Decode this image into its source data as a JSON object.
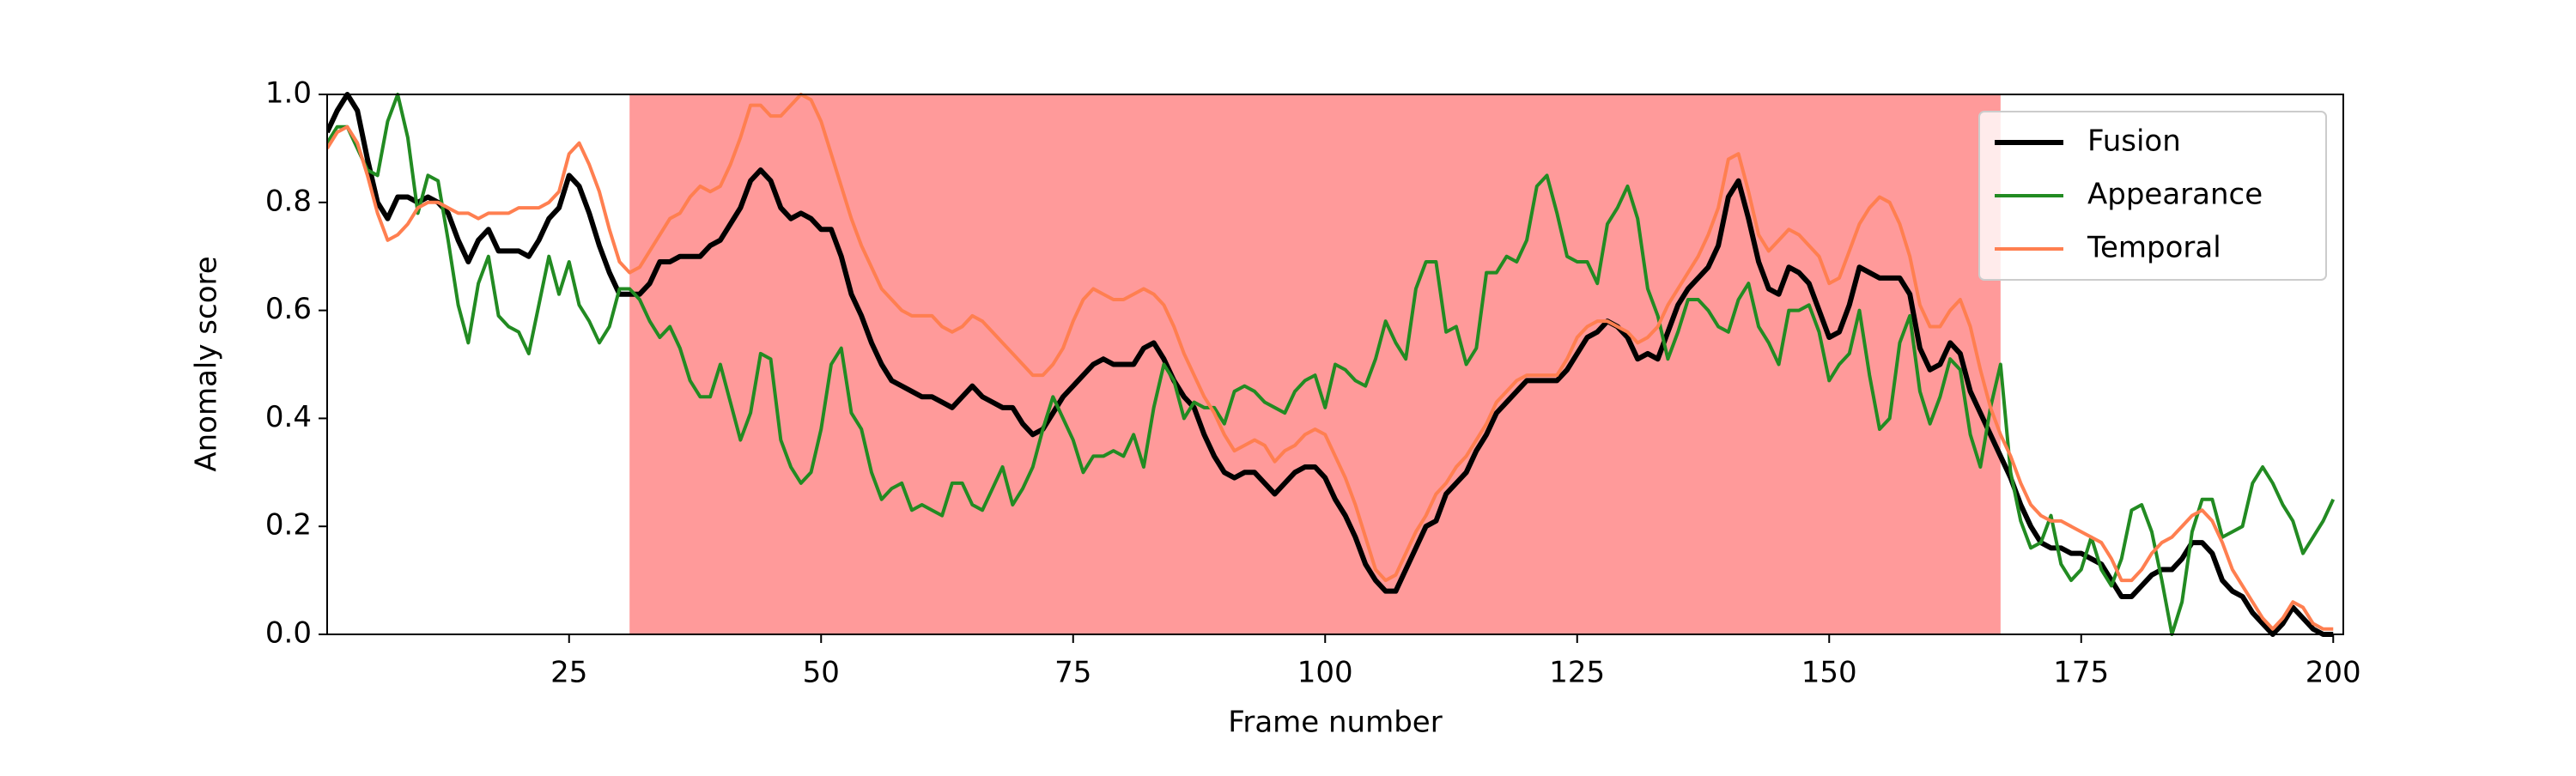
{
  "chart_data": {
    "type": "line",
    "x_label": "Frame number",
    "y_label": "Anomaly score",
    "xlim": [
      1,
      201
    ],
    "ylim": [
      0,
      1
    ],
    "xticks": [
      25,
      50,
      75,
      100,
      125,
      150,
      175,
      200
    ],
    "yticks": [
      {
        "value": 0,
        "label": "0.0"
      },
      0.2,
      0.4,
      0.6,
      0.8,
      {
        "value": 1,
        "label": "1.0"
      }
    ],
    "legend": "upper right",
    "shaded_span": {
      "from": 31,
      "to": 167,
      "color": "#ff9a9a"
    },
    "x": [
      1,
      2,
      3,
      4,
      5,
      6,
      7,
      8,
      9,
      10,
      11,
      12,
      13,
      14,
      15,
      16,
      17,
      18,
      19,
      20,
      21,
      22,
      23,
      24,
      25,
      26,
      27,
      28,
      29,
      30,
      31,
      32,
      33,
      34,
      35,
      36,
      37,
      38,
      39,
      40,
      41,
      42,
      43,
      44,
      45,
      46,
      47,
      48,
      49,
      50,
      51,
      52,
      53,
      54,
      55,
      56,
      57,
      58,
      59,
      60,
      61,
      62,
      63,
      64,
      65,
      66,
      67,
      68,
      69,
      70,
      71,
      72,
      73,
      74,
      75,
      76,
      77,
      78,
      79,
      80,
      81,
      82,
      83,
      84,
      85,
      86,
      87,
      88,
      89,
      90,
      91,
      92,
      93,
      94,
      95,
      96,
      97,
      98,
      99,
      100,
      101,
      102,
      103,
      104,
      105,
      106,
      107,
      108,
      109,
      110,
      111,
      112,
      113,
      114,
      115,
      116,
      117,
      118,
      119,
      120,
      121,
      122,
      123,
      124,
      125,
      126,
      127,
      128,
      129,
      130,
      131,
      132,
      133,
      134,
      135,
      136,
      137,
      138,
      139,
      140,
      141,
      142,
      143,
      144,
      145,
      146,
      147,
      148,
      149,
      150,
      151,
      152,
      153,
      154,
      155,
      156,
      157,
      158,
      159,
      160,
      161,
      162,
      163,
      164,
      165,
      166,
      167,
      168,
      169,
      170,
      171,
      172,
      173,
      174,
      175,
      176,
      177,
      178,
      179,
      180,
      181,
      182,
      183,
      184,
      185,
      186,
      187,
      188,
      189,
      190,
      191,
      192,
      193,
      194,
      195,
      196,
      197,
      198,
      199,
      200
    ],
    "series": [
      {
        "name": "Fusion",
        "color": "#000000",
        "width": 6,
        "values": [
          0.93,
          0.97,
          1.0,
          0.97,
          0.88,
          0.8,
          0.77,
          0.81,
          0.81,
          0.8,
          0.81,
          0.8,
          0.78,
          0.73,
          0.69,
          0.73,
          0.75,
          0.71,
          0.71,
          0.71,
          0.7,
          0.73,
          0.77,
          0.79,
          0.85,
          0.83,
          0.78,
          0.72,
          0.67,
          0.63,
          0.63,
          0.63,
          0.65,
          0.69,
          0.69,
          0.7,
          0.7,
          0.7,
          0.72,
          0.73,
          0.76,
          0.79,
          0.84,
          0.86,
          0.84,
          0.79,
          0.77,
          0.78,
          0.77,
          0.75,
          0.75,
          0.7,
          0.63,
          0.59,
          0.54,
          0.5,
          0.47,
          0.46,
          0.45,
          0.44,
          0.44,
          0.43,
          0.42,
          0.44,
          0.46,
          0.44,
          0.43,
          0.42,
          0.42,
          0.39,
          0.37,
          0.38,
          0.41,
          0.44,
          0.46,
          0.48,
          0.5,
          0.51,
          0.5,
          0.5,
          0.5,
          0.53,
          0.54,
          0.51,
          0.47,
          0.44,
          0.42,
          0.37,
          0.33,
          0.3,
          0.29,
          0.3,
          0.3,
          0.28,
          0.26,
          0.28,
          0.3,
          0.31,
          0.31,
          0.29,
          0.25,
          0.22,
          0.18,
          0.13,
          0.1,
          0.08,
          0.08,
          0.12,
          0.16,
          0.2,
          0.21,
          0.26,
          0.28,
          0.3,
          0.34,
          0.37,
          0.41,
          0.43,
          0.45,
          0.47,
          0.47,
          0.47,
          0.47,
          0.49,
          0.52,
          0.55,
          0.56,
          0.58,
          0.57,
          0.55,
          0.51,
          0.52,
          0.51,
          0.56,
          0.61,
          0.64,
          0.66,
          0.68,
          0.72,
          0.81,
          0.84,
          0.77,
          0.69,
          0.64,
          0.63,
          0.68,
          0.67,
          0.65,
          0.6,
          0.55,
          0.56,
          0.61,
          0.68,
          0.67,
          0.66,
          0.66,
          0.66,
          0.63,
          0.53,
          0.49,
          0.5,
          0.54,
          0.52,
          0.45,
          0.41,
          0.37,
          0.33,
          0.29,
          0.24,
          0.2,
          0.17,
          0.16,
          0.16,
          0.15,
          0.15,
          0.14,
          0.13,
          0.1,
          0.07,
          0.07,
          0.09,
          0.11,
          0.12,
          0.12,
          0.14,
          0.17,
          0.17,
          0.15,
          0.1,
          0.08,
          0.07,
          0.04,
          0.02,
          0.0,
          0.02,
          0.05,
          0.03,
          0.01,
          0.0,
          0.0
        ]
      },
      {
        "name": "Appearance",
        "color": "#228b22",
        "width": 4,
        "values": [
          0.91,
          0.94,
          0.94,
          0.9,
          0.86,
          0.85,
          0.95,
          1.0,
          0.92,
          0.78,
          0.85,
          0.84,
          0.73,
          0.61,
          0.54,
          0.65,
          0.7,
          0.59,
          0.57,
          0.56,
          0.52,
          0.61,
          0.7,
          0.63,
          0.69,
          0.61,
          0.58,
          0.54,
          0.57,
          0.64,
          0.64,
          0.62,
          0.58,
          0.55,
          0.57,
          0.53,
          0.47,
          0.44,
          0.44,
          0.5,
          0.43,
          0.36,
          0.41,
          0.52,
          0.51,
          0.36,
          0.31,
          0.28,
          0.3,
          0.38,
          0.5,
          0.53,
          0.41,
          0.38,
          0.3,
          0.25,
          0.27,
          0.28,
          0.23,
          0.24,
          0.23,
          0.22,
          0.28,
          0.28,
          0.24,
          0.23,
          0.27,
          0.31,
          0.24,
          0.27,
          0.31,
          0.38,
          0.44,
          0.4,
          0.36,
          0.3,
          0.33,
          0.33,
          0.34,
          0.33,
          0.37,
          0.31,
          0.42,
          0.5,
          0.47,
          0.4,
          0.43,
          0.42,
          0.42,
          0.39,
          0.45,
          0.46,
          0.45,
          0.43,
          0.42,
          0.41,
          0.45,
          0.47,
          0.48,
          0.42,
          0.5,
          0.49,
          0.47,
          0.46,
          0.51,
          0.58,
          0.54,
          0.51,
          0.64,
          0.69,
          0.69,
          0.56,
          0.57,
          0.5,
          0.53,
          0.67,
          0.67,
          0.7,
          0.69,
          0.73,
          0.83,
          0.85,
          0.78,
          0.7,
          0.69,
          0.69,
          0.65,
          0.76,
          0.79,
          0.83,
          0.77,
          0.64,
          0.59,
          0.51,
          0.56,
          0.62,
          0.62,
          0.6,
          0.57,
          0.56,
          0.62,
          0.65,
          0.57,
          0.54,
          0.5,
          0.6,
          0.6,
          0.61,
          0.56,
          0.47,
          0.5,
          0.52,
          0.6,
          0.48,
          0.38,
          0.4,
          0.54,
          0.59,
          0.45,
          0.39,
          0.44,
          0.51,
          0.49,
          0.37,
          0.31,
          0.42,
          0.5,
          0.3,
          0.21,
          0.16,
          0.17,
          0.22,
          0.13,
          0.1,
          0.12,
          0.18,
          0.12,
          0.09,
          0.14,
          0.23,
          0.24,
          0.19,
          0.1,
          0.0,
          0.06,
          0.19,
          0.25,
          0.25,
          0.18,
          0.19,
          0.2,
          0.28,
          0.31,
          0.28,
          0.24,
          0.21,
          0.15,
          0.18,
          0.21,
          0.25
        ]
      },
      {
        "name": "Temporal",
        "color": "#ff7f50",
        "width": 4,
        "values": [
          0.9,
          0.93,
          0.94,
          0.91,
          0.85,
          0.78,
          0.73,
          0.74,
          0.76,
          0.79,
          0.8,
          0.8,
          0.79,
          0.78,
          0.78,
          0.77,
          0.78,
          0.78,
          0.78,
          0.79,
          0.79,
          0.79,
          0.8,
          0.82,
          0.89,
          0.91,
          0.87,
          0.82,
          0.75,
          0.69,
          0.67,
          0.68,
          0.71,
          0.74,
          0.77,
          0.78,
          0.81,
          0.83,
          0.82,
          0.83,
          0.87,
          0.92,
          0.98,
          0.98,
          0.96,
          0.96,
          0.98,
          1.0,
          0.99,
          0.95,
          0.89,
          0.83,
          0.77,
          0.72,
          0.68,
          0.64,
          0.62,
          0.6,
          0.59,
          0.59,
          0.59,
          0.57,
          0.56,
          0.57,
          0.59,
          0.58,
          0.56,
          0.54,
          0.52,
          0.5,
          0.48,
          0.48,
          0.5,
          0.53,
          0.58,
          0.62,
          0.64,
          0.63,
          0.62,
          0.62,
          0.63,
          0.64,
          0.63,
          0.61,
          0.57,
          0.52,
          0.48,
          0.44,
          0.41,
          0.37,
          0.34,
          0.35,
          0.36,
          0.35,
          0.32,
          0.34,
          0.35,
          0.37,
          0.38,
          0.37,
          0.33,
          0.29,
          0.24,
          0.18,
          0.12,
          0.1,
          0.11,
          0.15,
          0.19,
          0.22,
          0.26,
          0.28,
          0.31,
          0.33,
          0.36,
          0.39,
          0.43,
          0.45,
          0.47,
          0.48,
          0.48,
          0.48,
          0.48,
          0.51,
          0.55,
          0.57,
          0.58,
          0.58,
          0.57,
          0.56,
          0.54,
          0.55,
          0.57,
          0.61,
          0.64,
          0.67,
          0.7,
          0.74,
          0.79,
          0.88,
          0.89,
          0.82,
          0.74,
          0.71,
          0.73,
          0.75,
          0.74,
          0.72,
          0.7,
          0.65,
          0.66,
          0.71,
          0.76,
          0.79,
          0.81,
          0.8,
          0.76,
          0.7,
          0.61,
          0.57,
          0.57,
          0.6,
          0.62,
          0.57,
          0.49,
          0.42,
          0.37,
          0.33,
          0.28,
          0.24,
          0.22,
          0.21,
          0.21,
          0.2,
          0.19,
          0.18,
          0.17,
          0.14,
          0.1,
          0.1,
          0.12,
          0.15,
          0.17,
          0.18,
          0.2,
          0.22,
          0.23,
          0.21,
          0.17,
          0.12,
          0.09,
          0.06,
          0.03,
          0.01,
          0.03,
          0.06,
          0.05,
          0.02,
          0.01,
          0.01
        ]
      }
    ]
  }
}
